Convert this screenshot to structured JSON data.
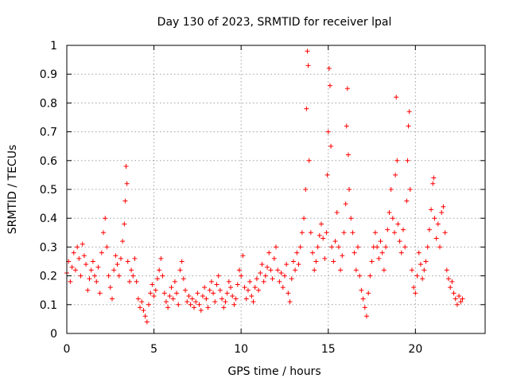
{
  "chart_data": {
    "type": "scatter",
    "title": "Day 130 of 2023, SRMTID for receiver lpal",
    "xlabel": "GPS time / hours",
    "ylabel": "SRMTID / TECUs",
    "xlim": [
      0,
      24
    ],
    "ylim": [
      0,
      1
    ],
    "xticks": [
      0,
      5,
      10,
      15,
      20
    ],
    "xtick_labels": [
      "0",
      "5",
      "10",
      "15",
      "20"
    ],
    "yticks": [
      0,
      0.1,
      0.2,
      0.3,
      0.4,
      0.5,
      0.6,
      0.7,
      0.8,
      0.9,
      1
    ],
    "ytick_labels": [
      "0",
      "0.1",
      "0.2",
      "0.3",
      "0.4",
      "0.5",
      "0.6",
      "0.7",
      "0.8",
      "0.9",
      "1"
    ],
    "grid": true,
    "marker": "+",
    "color": "#ff0000",
    "series": [
      {
        "name": "SRMTID",
        "points": [
          [
            0.0,
            0.21
          ],
          [
            0.1,
            0.25
          ],
          [
            0.2,
            0.18
          ],
          [
            0.3,
            0.23
          ],
          [
            0.4,
            0.28
          ],
          [
            0.5,
            0.22
          ],
          [
            0.6,
            0.3
          ],
          [
            0.7,
            0.26
          ],
          [
            0.8,
            0.2
          ],
          [
            0.9,
            0.31
          ],
          [
            1.0,
            0.27
          ],
          [
            1.1,
            0.24
          ],
          [
            1.2,
            0.15
          ],
          [
            1.3,
            0.19
          ],
          [
            1.4,
            0.22
          ],
          [
            1.5,
            0.25
          ],
          [
            1.6,
            0.2
          ],
          [
            1.7,
            0.18
          ],
          [
            1.8,
            0.23
          ],
          [
            1.9,
            0.14
          ],
          [
            2.0,
            0.28
          ],
          [
            2.1,
            0.35
          ],
          [
            2.2,
            0.4
          ],
          [
            2.3,
            0.3
          ],
          [
            2.4,
            0.2
          ],
          [
            2.5,
            0.16
          ],
          [
            2.6,
            0.12
          ],
          [
            2.7,
            0.22
          ],
          [
            2.8,
            0.27
          ],
          [
            2.9,
            0.24
          ],
          [
            3.0,
            0.2
          ],
          [
            3.1,
            0.26
          ],
          [
            3.2,
            0.32
          ],
          [
            3.3,
            0.38
          ],
          [
            3.35,
            0.46
          ],
          [
            3.4,
            0.58
          ],
          [
            3.45,
            0.52
          ],
          [
            3.5,
            0.25
          ],
          [
            3.6,
            0.18
          ],
          [
            3.7,
            0.22
          ],
          [
            3.8,
            0.2
          ],
          [
            3.9,
            0.26
          ],
          [
            4.0,
            0.18
          ],
          [
            4.1,
            0.12
          ],
          [
            4.2,
            0.09
          ],
          [
            4.3,
            0.11
          ],
          [
            4.4,
            0.08
          ],
          [
            4.5,
            0.06
          ],
          [
            4.6,
            0.04
          ],
          [
            4.7,
            0.1
          ],
          [
            4.8,
            0.14
          ],
          [
            4.9,
            0.17
          ],
          [
            5.0,
            0.13
          ],
          [
            5.1,
            0.15
          ],
          [
            5.2,
            0.19
          ],
          [
            5.3,
            0.22
          ],
          [
            5.4,
            0.26
          ],
          [
            5.5,
            0.2
          ],
          [
            5.6,
            0.14
          ],
          [
            5.7,
            0.11
          ],
          [
            5.8,
            0.09
          ],
          [
            5.9,
            0.13
          ],
          [
            6.0,
            0.16
          ],
          [
            6.1,
            0.12
          ],
          [
            6.2,
            0.18
          ],
          [
            6.3,
            0.14
          ],
          [
            6.4,
            0.1
          ],
          [
            6.5,
            0.22
          ],
          [
            6.6,
            0.25
          ],
          [
            6.7,
            0.19
          ],
          [
            6.8,
            0.15
          ],
          [
            6.9,
            0.11
          ],
          [
            7.0,
            0.13
          ],
          [
            7.1,
            0.1
          ],
          [
            7.2,
            0.12
          ],
          [
            7.3,
            0.09
          ],
          [
            7.4,
            0.11
          ],
          [
            7.5,
            0.14
          ],
          [
            7.6,
            0.1
          ],
          [
            7.7,
            0.08
          ],
          [
            7.8,
            0.13
          ],
          [
            7.9,
            0.16
          ],
          [
            8.0,
            0.12
          ],
          [
            8.1,
            0.09
          ],
          [
            8.2,
            0.15
          ],
          [
            8.3,
            0.18
          ],
          [
            8.4,
            0.14
          ],
          [
            8.5,
            0.11
          ],
          [
            8.6,
            0.17
          ],
          [
            8.7,
            0.2
          ],
          [
            8.8,
            0.15
          ],
          [
            8.9,
            0.12
          ],
          [
            9.0,
            0.09
          ],
          [
            9.1,
            0.11
          ],
          [
            9.2,
            0.14
          ],
          [
            9.3,
            0.18
          ],
          [
            9.4,
            0.16
          ],
          [
            9.5,
            0.13
          ],
          [
            9.6,
            0.1
          ],
          [
            9.7,
            0.12
          ],
          [
            9.8,
            0.17
          ],
          [
            9.9,
            0.22
          ],
          [
            10.0,
            0.2
          ],
          [
            10.1,
            0.27
          ],
          [
            10.2,
            0.16
          ],
          [
            10.3,
            0.12
          ],
          [
            10.4,
            0.15
          ],
          [
            10.5,
            0.18
          ],
          [
            10.6,
            0.13
          ],
          [
            10.7,
            0.11
          ],
          [
            10.8,
            0.16
          ],
          [
            10.9,
            0.19
          ],
          [
            11.0,
            0.15
          ],
          [
            11.1,
            0.21
          ],
          [
            11.2,
            0.24
          ],
          [
            11.3,
            0.18
          ],
          [
            11.4,
            0.2
          ],
          [
            11.5,
            0.23
          ],
          [
            11.6,
            0.28
          ],
          [
            11.7,
            0.22
          ],
          [
            11.8,
            0.19
          ],
          [
            11.9,
            0.26
          ],
          [
            12.0,
            0.3
          ],
          [
            12.1,
            0.22
          ],
          [
            12.2,
            0.18
          ],
          [
            12.3,
            0.21
          ],
          [
            12.4,
            0.16
          ],
          [
            12.5,
            0.2
          ],
          [
            12.6,
            0.24
          ],
          [
            12.7,
            0.14
          ],
          [
            12.8,
            0.11
          ],
          [
            12.9,
            0.19
          ],
          [
            13.0,
            0.25
          ],
          [
            13.1,
            0.22
          ],
          [
            13.2,
            0.28
          ],
          [
            13.3,
            0.24
          ],
          [
            13.4,
            0.3
          ],
          [
            13.5,
            0.35
          ],
          [
            13.6,
            0.4
          ],
          [
            13.7,
            0.5
          ],
          [
            13.75,
            0.78
          ],
          [
            13.8,
            0.98
          ],
          [
            13.85,
            0.93
          ],
          [
            13.9,
            0.6
          ],
          [
            14.0,
            0.35
          ],
          [
            14.1,
            0.28
          ],
          [
            14.2,
            0.22
          ],
          [
            14.3,
            0.25
          ],
          [
            14.4,
            0.3
          ],
          [
            14.5,
            0.34
          ],
          [
            14.6,
            0.38
          ],
          [
            14.7,
            0.33
          ],
          [
            14.8,
            0.26
          ],
          [
            14.9,
            0.35
          ],
          [
            14.95,
            0.55
          ],
          [
            15.0,
            0.7
          ],
          [
            15.05,
            0.92
          ],
          [
            15.1,
            0.86
          ],
          [
            15.15,
            0.65
          ],
          [
            15.2,
            0.3
          ],
          [
            15.3,
            0.25
          ],
          [
            15.4,
            0.32
          ],
          [
            15.5,
            0.42
          ],
          [
            15.6,
            0.3
          ],
          [
            15.7,
            0.22
          ],
          [
            15.8,
            0.27
          ],
          [
            15.9,
            0.35
          ],
          [
            16.0,
            0.45
          ],
          [
            16.05,
            0.72
          ],
          [
            16.1,
            0.85
          ],
          [
            16.15,
            0.62
          ],
          [
            16.2,
            0.5
          ],
          [
            16.3,
            0.4
          ],
          [
            16.4,
            0.35
          ],
          [
            16.5,
            0.28
          ],
          [
            16.6,
            0.22
          ],
          [
            16.7,
            0.3
          ],
          [
            16.8,
            0.2
          ],
          [
            16.9,
            0.15
          ],
          [
            17.0,
            0.12
          ],
          [
            17.1,
            0.09
          ],
          [
            17.2,
            0.06
          ],
          [
            17.3,
            0.14
          ],
          [
            17.4,
            0.2
          ],
          [
            17.5,
            0.25
          ],
          [
            17.6,
            0.3
          ],
          [
            17.7,
            0.35
          ],
          [
            17.8,
            0.3
          ],
          [
            17.9,
            0.26
          ],
          [
            18.0,
            0.32
          ],
          [
            18.1,
            0.28
          ],
          [
            18.2,
            0.22
          ],
          [
            18.3,
            0.3
          ],
          [
            18.4,
            0.36
          ],
          [
            18.5,
            0.42
          ],
          [
            18.6,
            0.5
          ],
          [
            18.7,
            0.4
          ],
          [
            18.8,
            0.35
          ],
          [
            18.85,
            0.55
          ],
          [
            18.9,
            0.82
          ],
          [
            18.95,
            0.6
          ],
          [
            19.0,
            0.38
          ],
          [
            19.1,
            0.32
          ],
          [
            19.2,
            0.28
          ],
          [
            19.3,
            0.36
          ],
          [
            19.4,
            0.3
          ],
          [
            19.5,
            0.46
          ],
          [
            19.55,
            0.6
          ],
          [
            19.6,
            0.72
          ],
          [
            19.65,
            0.77
          ],
          [
            19.7,
            0.5
          ],
          [
            19.8,
            0.22
          ],
          [
            19.9,
            0.16
          ],
          [
            20.0,
            0.14
          ],
          [
            20.1,
            0.2
          ],
          [
            20.2,
            0.28
          ],
          [
            20.3,
            0.24
          ],
          [
            20.4,
            0.19
          ],
          [
            20.5,
            0.22
          ],
          [
            20.6,
            0.25
          ],
          [
            20.7,
            0.3
          ],
          [
            20.8,
            0.36
          ],
          [
            20.9,
            0.43
          ],
          [
            21.0,
            0.52
          ],
          [
            21.05,
            0.54
          ],
          [
            21.1,
            0.4
          ],
          [
            21.2,
            0.33
          ],
          [
            21.3,
            0.38
          ],
          [
            21.4,
            0.3
          ],
          [
            21.5,
            0.42
          ],
          [
            21.6,
            0.44
          ],
          [
            21.7,
            0.35
          ],
          [
            21.8,
            0.22
          ],
          [
            21.9,
            0.19
          ],
          [
            22.0,
            0.16
          ],
          [
            22.1,
            0.18
          ],
          [
            22.2,
            0.14
          ],
          [
            22.3,
            0.12
          ],
          [
            22.4,
            0.1
          ],
          [
            22.5,
            0.13
          ],
          [
            22.6,
            0.11
          ],
          [
            22.7,
            0.12
          ]
        ]
      }
    ]
  }
}
